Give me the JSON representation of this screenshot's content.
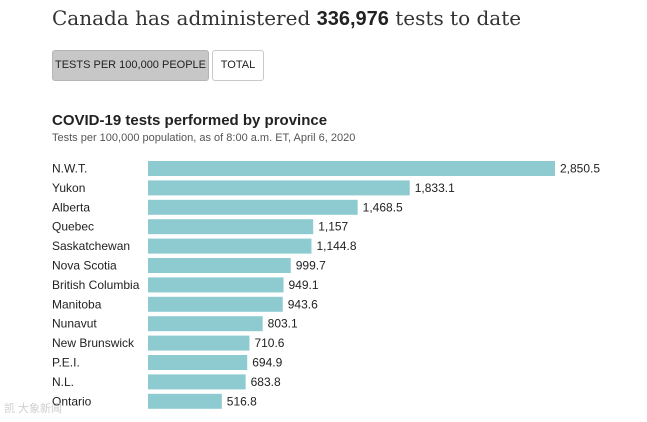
{
  "header": {
    "headline_prefix": "Canada has administered",
    "headline_number": "336,976",
    "headline_suffix": "tests to date"
  },
  "toggles": {
    "per_100k_label": "TESTS PER 100,000 PEOPLE",
    "total_label": "TOTAL",
    "active": "per_100k"
  },
  "watermark": "凯 大象新闻",
  "colors": {
    "bar": "#8dcbd1",
    "active_toggle": "#c7c7c7"
  },
  "chart_data": {
    "type": "bar",
    "orientation": "horizontal",
    "title": "COVID-19 tests performed by province",
    "subtitle": "Tests per 100,000 population, as of 8:00 a.m. ET, April 6, 2020",
    "categories": [
      "N.W.T.",
      "Yukon",
      "Alberta",
      "Quebec",
      "Saskatchewan",
      "Nova Scotia",
      "British Columbia",
      "Manitoba",
      "Nunavut",
      "New Brunswick",
      "P.E.I.",
      "N.L.",
      "Ontario"
    ],
    "values": [
      2850.5,
      1833.1,
      1468.5,
      1157,
      1144.8,
      999.7,
      949.1,
      943.6,
      803.1,
      710.6,
      694.9,
      683.8,
      516.8
    ],
    "value_labels": [
      "2,850.5",
      "1,833.1",
      "1,468.5",
      "1,157",
      "1,144.8",
      "999.7",
      "949.1",
      "943.6",
      "803.1",
      "710.6",
      "694.9",
      "683.8",
      "516.8"
    ],
    "xlim": [
      0,
      2850.5
    ],
    "xlabel": "",
    "ylabel": "",
    "grid": false,
    "legend": "none"
  }
}
